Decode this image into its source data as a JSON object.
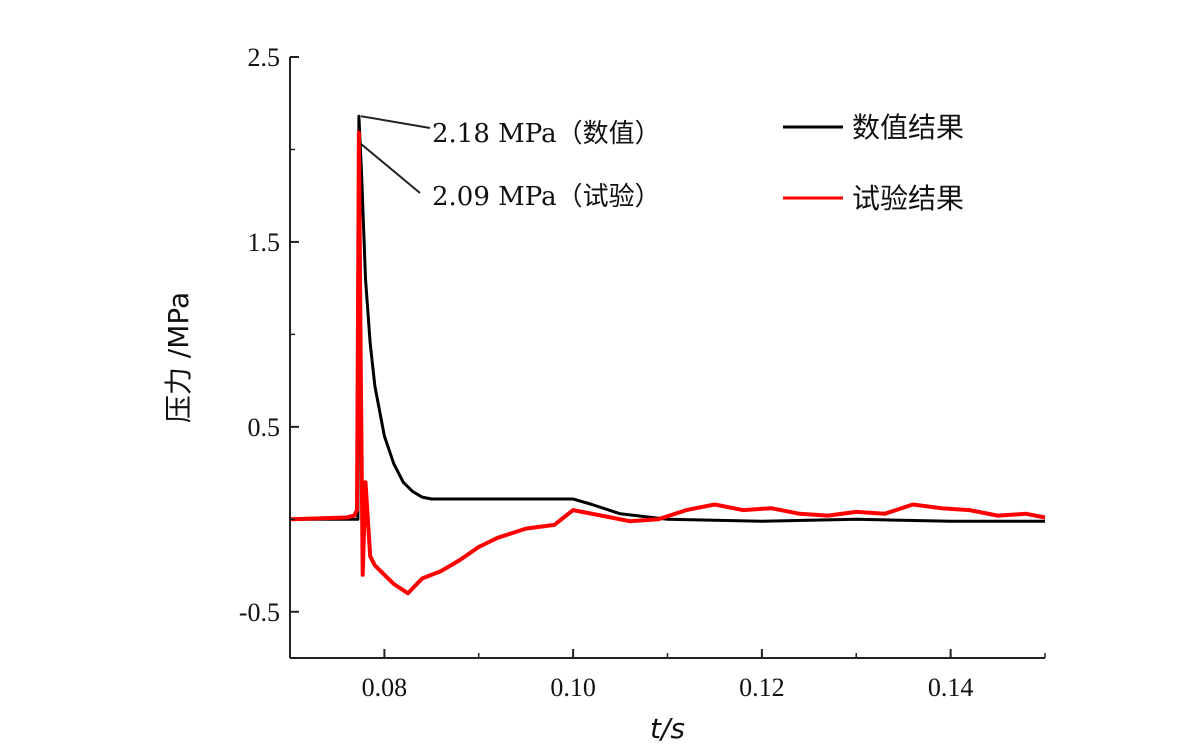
{
  "chart_data": {
    "type": "line",
    "title": "",
    "xlabel": "t/s",
    "ylabel": "压力 /MPa",
    "xlim": [
      0.07,
      0.15
    ],
    "ylim": [
      -0.75,
      2.5
    ],
    "xticks": [
      0.08,
      0.1,
      0.12,
      0.14
    ],
    "xtick_labels": [
      "0.08",
      "0.10",
      "0.12",
      "0.14"
    ],
    "yticks": [
      -0.5,
      0.5,
      1.5,
      2.5
    ],
    "ytick_labels": [
      "-0.5",
      "0.5",
      "1.5",
      "2.5"
    ],
    "grid": false,
    "legend_position": "top-right",
    "series": [
      {
        "name": "数值结果",
        "color": "#000000",
        "x": [
          0.07,
          0.0765,
          0.0772,
          0.0773,
          0.0776,
          0.078,
          0.0785,
          0.079,
          0.08,
          0.081,
          0.082,
          0.083,
          0.084,
          0.085,
          0.087,
          0.09,
          0.095,
          0.1,
          0.102,
          0.105,
          0.11,
          0.12,
          0.13,
          0.14,
          0.15
        ],
        "y": [
          0.0,
          0.0,
          0.0,
          2.18,
          1.85,
          1.3,
          0.95,
          0.72,
          0.45,
          0.3,
          0.2,
          0.15,
          0.12,
          0.11,
          0.11,
          0.11,
          0.11,
          0.11,
          0.08,
          0.03,
          0.0,
          -0.01,
          0.0,
          -0.01,
          -0.01
        ]
      },
      {
        "name": "试验结果",
        "color": "#ff0000",
        "x": [
          0.07,
          0.076,
          0.0768,
          0.0771,
          0.0773,
          0.0775,
          0.0777,
          0.078,
          0.0785,
          0.079,
          0.08,
          0.081,
          0.0825,
          0.084,
          0.086,
          0.088,
          0.09,
          0.092,
          0.095,
          0.098,
          0.1,
          0.103,
          0.106,
          0.109,
          0.112,
          0.115,
          0.118,
          0.121,
          0.124,
          0.127,
          0.13,
          0.133,
          0.136,
          0.139,
          0.142,
          0.145,
          0.148,
          0.15
        ],
        "y": [
          0.0,
          0.01,
          0.02,
          0.05,
          2.09,
          0.8,
          -0.3,
          0.2,
          -0.2,
          -0.25,
          -0.3,
          -0.35,
          -0.4,
          -0.32,
          -0.28,
          -0.22,
          -0.15,
          -0.1,
          -0.05,
          -0.03,
          0.05,
          0.02,
          -0.01,
          0.0,
          0.05,
          0.08,
          0.05,
          0.06,
          0.03,
          0.02,
          0.04,
          0.03,
          0.08,
          0.06,
          0.05,
          0.02,
          0.03,
          0.01
        ]
      }
    ],
    "annotations": [
      {
        "text": "2.18 MPa（数值）",
        "x": 0.0773,
        "y": 2.18
      },
      {
        "text": "2.09 MPa（试验）",
        "x": 0.0773,
        "y": 2.03
      }
    ]
  }
}
